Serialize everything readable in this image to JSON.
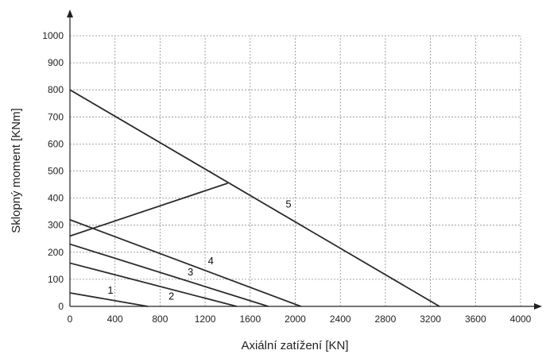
{
  "chart_data": {
    "type": "line",
    "title": "",
    "xlabel": "Axiální zatížení [KN]",
    "ylabel": "Sklopný moment [KNm]",
    "xlim": [
      0,
      4000
    ],
    "ylim": [
      0,
      1000
    ],
    "xticks": [
      0,
      400,
      800,
      1200,
      1600,
      2000,
      2400,
      2800,
      3200,
      3600,
      4000
    ],
    "yticks": [
      0,
      100,
      200,
      300,
      400,
      500,
      600,
      700,
      800,
      900,
      1000
    ],
    "xtick_labels": [
      "0",
      "400",
      "800",
      "1200",
      "1600",
      "2000",
      "2400",
      "2800",
      "3200",
      "3600",
      "4000"
    ],
    "ytick_labels": [
      "0",
      "100",
      "200",
      "300",
      "400",
      "500",
      "600",
      "700",
      "800",
      "900",
      "1000"
    ],
    "grid": true,
    "series": [
      {
        "name": "1",
        "points": [
          [
            0,
            50
          ],
          [
            690,
            0
          ]
        ],
        "label_at": [
          360,
          47
        ]
      },
      {
        "name": "2",
        "points": [
          [
            0,
            160
          ],
          [
            1480,
            0
          ]
        ],
        "label_at": [
          900,
          25
        ]
      },
      {
        "name": "3",
        "points": [
          [
            0,
            230
          ],
          [
            1760,
            0
          ]
        ],
        "label_at": [
          1070,
          115
        ]
      },
      {
        "name": "4",
        "points": [
          [
            0,
            320
          ],
          [
            2050,
            0
          ]
        ],
        "label_at": [
          1250,
          155
        ]
      },
      {
        "name": "5",
        "points": [
          [
            0,
            800
          ],
          [
            3280,
            0
          ]
        ],
        "label_at": [
          1940,
          365
        ]
      },
      {
        "name": "",
        "points": [
          [
            0,
            260
          ],
          [
            1400,
            455
          ]
        ]
      }
    ]
  }
}
